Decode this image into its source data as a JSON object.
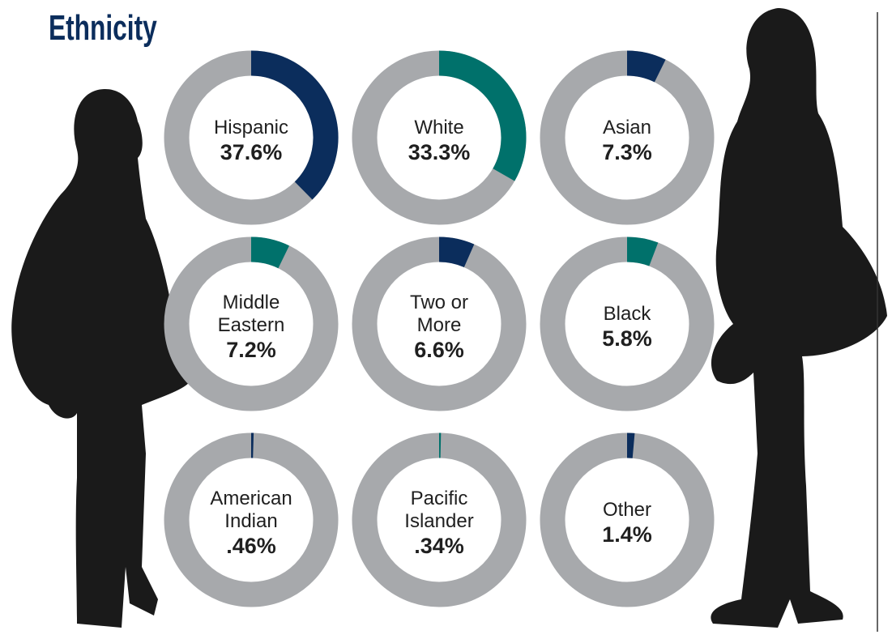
{
  "chart_data": {
    "type": "donut",
    "title": "Ethnicity",
    "categories": [
      "Hispanic",
      "White",
      "Asian",
      "Middle Eastern",
      "Two or More",
      "Black",
      "American Indian",
      "Pacific Islander",
      "Other"
    ],
    "values": [
      37.6,
      33.3,
      7.3,
      7.2,
      6.6,
      5.8,
      0.46,
      0.34,
      1.4
    ],
    "value_labels": [
      "37.6%",
      "33.3%",
      "7.3%",
      "7.2%",
      "6.6%",
      "5.8%",
      ".46%",
      ".34%",
      "1.4%"
    ],
    "colors": [
      "#0b2d5c",
      "#00716b",
      "#0b2d5c",
      "#00716b",
      "#0b2d5c",
      "#00716b",
      "#0b2d5c",
      "#00716b",
      "#0b2d5c"
    ],
    "track_color": "#a7a9ac"
  }
}
